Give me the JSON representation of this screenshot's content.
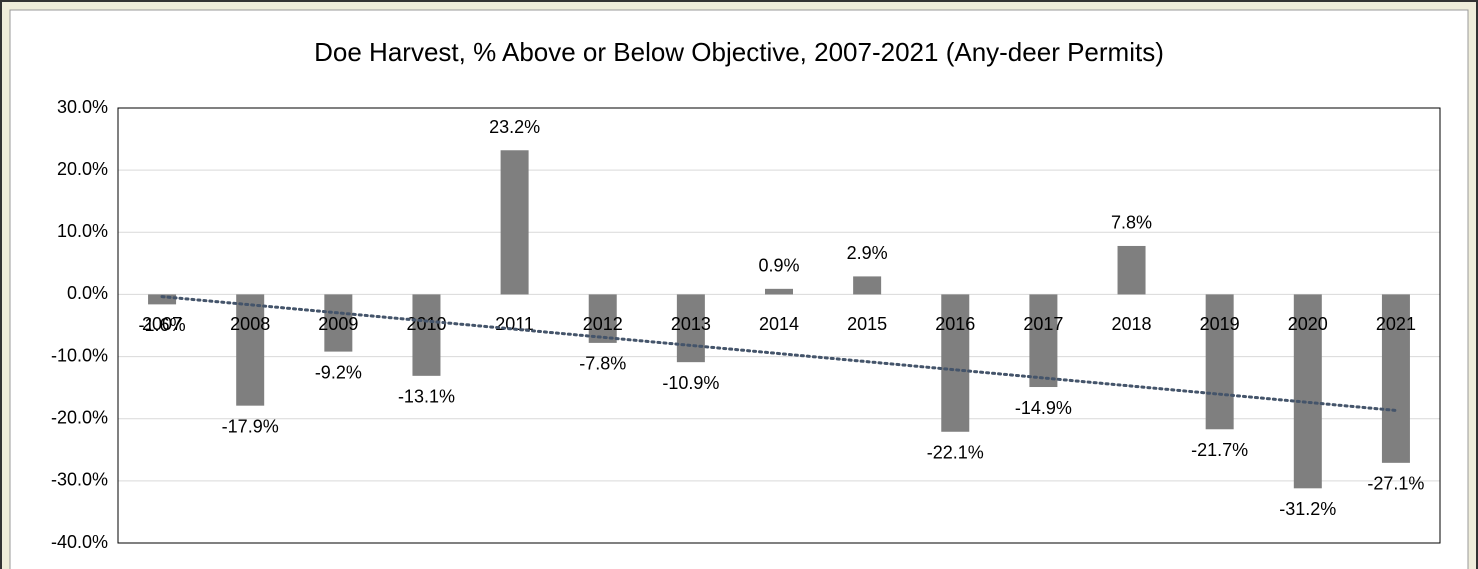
{
  "chart_data": {
    "type": "bar",
    "title": "Doe Harvest, % Above or Below Objective, 2007-2021 (Any-deer Permits)",
    "categories": [
      "2007",
      "2008",
      "2009",
      "2010",
      "2011",
      "2012",
      "2013",
      "2014",
      "2015",
      "2016",
      "2017",
      "2018",
      "2019",
      "2020",
      "2021"
    ],
    "values": [
      -1.6,
      -17.9,
      -9.2,
      -13.1,
      23.2,
      -7.8,
      -10.9,
      0.9,
      2.9,
      -22.1,
      -14.9,
      7.8,
      -21.7,
      -31.2,
      -27.1
    ],
    "value_labels": [
      "-1.6%",
      "-17.9%",
      "-9.2%",
      "-13.1%",
      "23.2%",
      "-7.8%",
      "-10.9%",
      "0.9%",
      "2.9%",
      "-22.1%",
      "-14.9%",
      "7.8%",
      "-21.7%",
      "-31.2%",
      "-27.1%"
    ],
    "color": "#7f7f7f",
    "ylim": [
      -40,
      30
    ],
    "yticks": [
      {
        "value": -40,
        "label": "-40.0%"
      },
      {
        "value": -30,
        "label": "-30.0%"
      },
      {
        "value": -20,
        "label": "-20.0%"
      },
      {
        "value": -10,
        "label": "-10.0%"
      },
      {
        "value": 0,
        "label": "0.0%"
      },
      {
        "value": 10,
        "label": "10.0%"
      },
      {
        "value": 20,
        "label": "20.0%"
      },
      {
        "value": 30,
        "label": "30.0%"
      }
    ],
    "grid": true,
    "trendline": true,
    "trendline_color": "#44546a"
  }
}
